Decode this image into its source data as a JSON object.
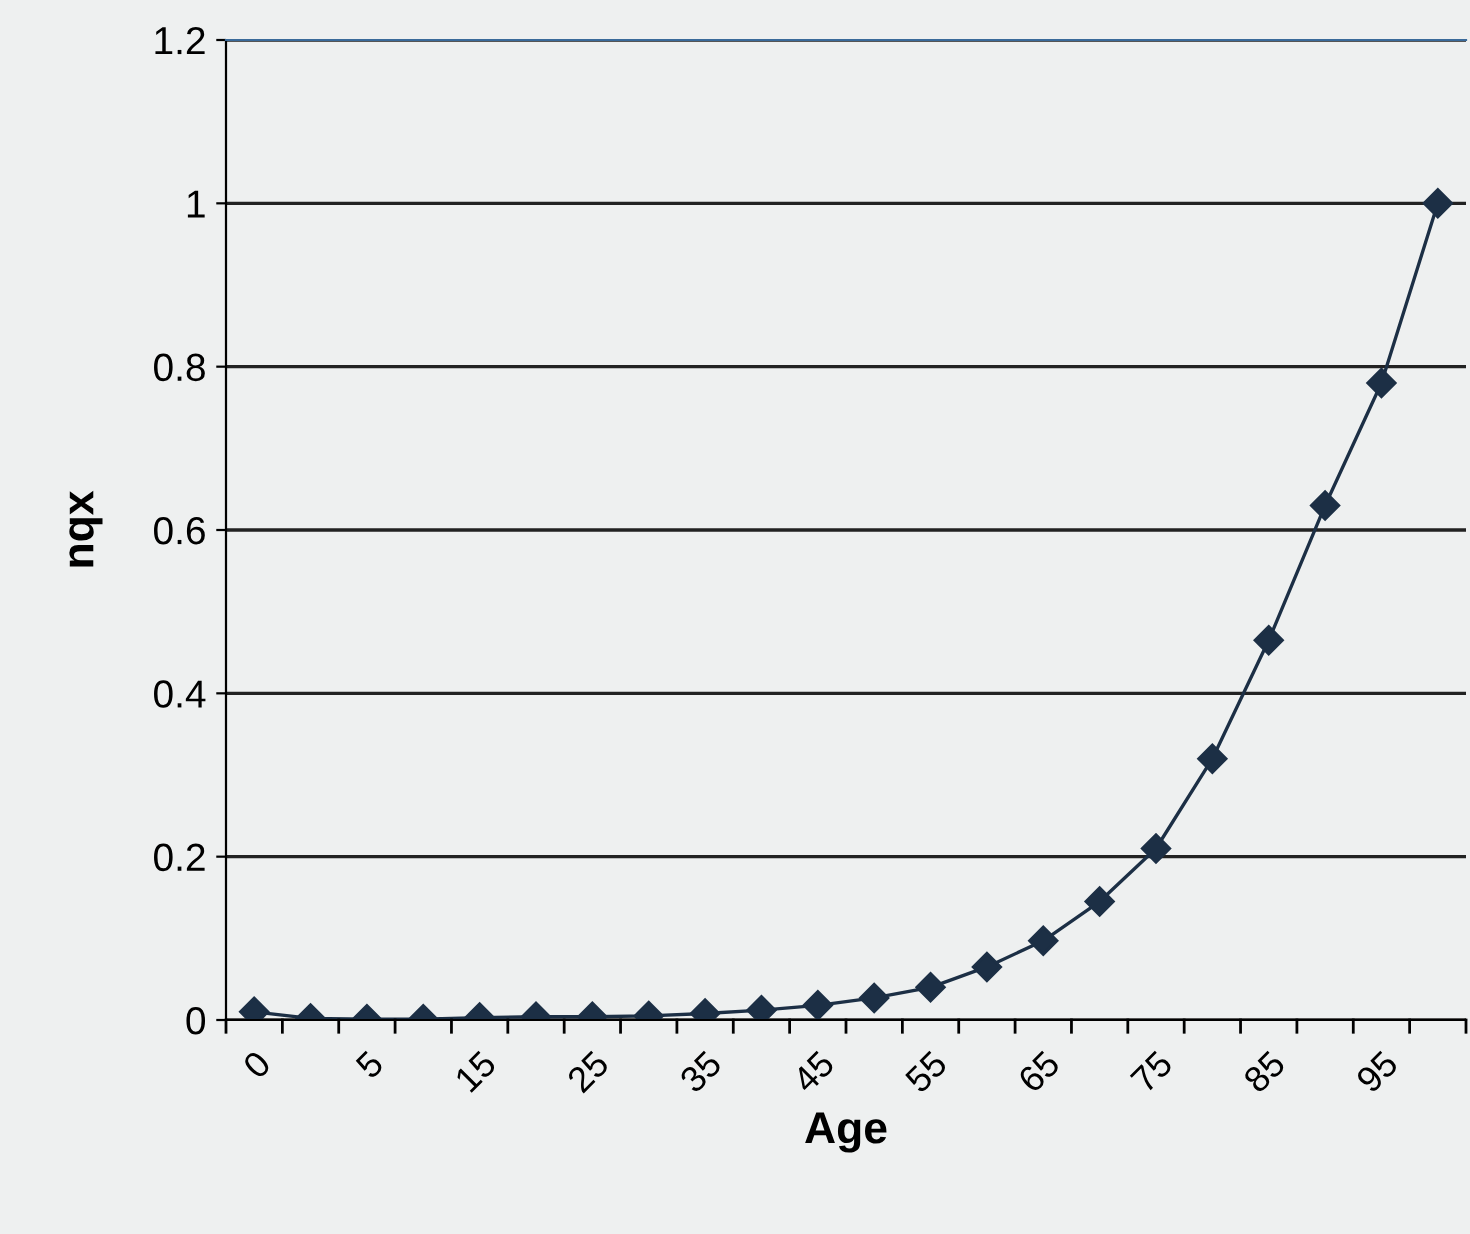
{
  "chart_data": {
    "type": "line",
    "xlabel": "Age",
    "ylabel": "nqx",
    "categories": [
      "0",
      null,
      "5",
      null,
      "15",
      null,
      "25",
      null,
      "35",
      null,
      "45",
      null,
      "55",
      null,
      "65",
      null,
      "75",
      null,
      "85",
      null,
      "95",
      null
    ],
    "series": [
      {
        "color": "#1c2f45",
        "values": [
          0.01,
          0.002,
          0.001,
          0.001,
          0.003,
          0.004,
          0.004,
          0.005,
          0.008,
          0.012,
          0.018,
          0.027,
          0.04,
          0.065,
          0.097,
          0.145,
          0.21,
          0.32,
          0.465,
          0.63,
          0.78,
          1.0
        ]
      }
    ],
    "ylim": [
      0,
      1.2
    ],
    "yticks": [
      0,
      0.2,
      0.4,
      0.6,
      0.8,
      1,
      1.2
    ],
    "grid": "y",
    "marker": "diamond",
    "line_style": "solid",
    "legend": false
  }
}
